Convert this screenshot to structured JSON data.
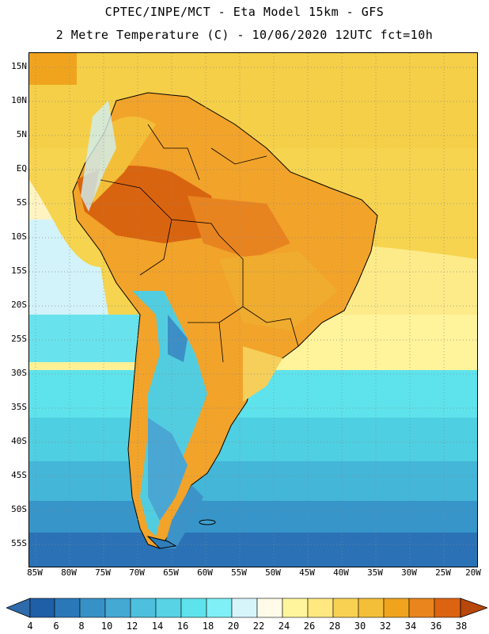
{
  "header": {
    "line1": "CPTEC/INPE/MCT -  Eta Model 15km - GFS",
    "line2": "2 Metre Temperature (C) - 10/06/2020 12UTC fct=10h"
  },
  "map": {
    "lat_labels": [
      "15N",
      "10N",
      "5N",
      "EQ",
      "5S",
      "10S",
      "15S",
      "20S",
      "25S",
      "30S",
      "35S",
      "40S",
      "45S",
      "50S",
      "55S"
    ],
    "lon_labels": [
      "85W",
      "80W",
      "75W",
      "70W",
      "65W",
      "60W",
      "55W",
      "50W",
      "45W",
      "40W",
      "35W",
      "30W",
      "25W",
      "20W"
    ]
  },
  "legend": {
    "labels": [
      "4",
      "6",
      "8",
      "10",
      "12",
      "14",
      "16",
      "18",
      "20",
      "22",
      "24",
      "26",
      "28",
      "30",
      "32",
      "34",
      "36",
      "38"
    ],
    "colors": [
      "#1f5fa6",
      "#2b78b9",
      "#3891c6",
      "#44a9d3",
      "#4ec0dd",
      "#57d3e5",
      "#5ee3ec",
      "#7ef0f6",
      "#d6f5fb",
      "#fffbe8",
      "#fff59c",
      "#ffe880",
      "#f9d152",
      "#f4bf38",
      "#f0a41e",
      "#e9851c",
      "#dc6312",
      "#c24808",
      "#b8470b"
    ]
  }
}
